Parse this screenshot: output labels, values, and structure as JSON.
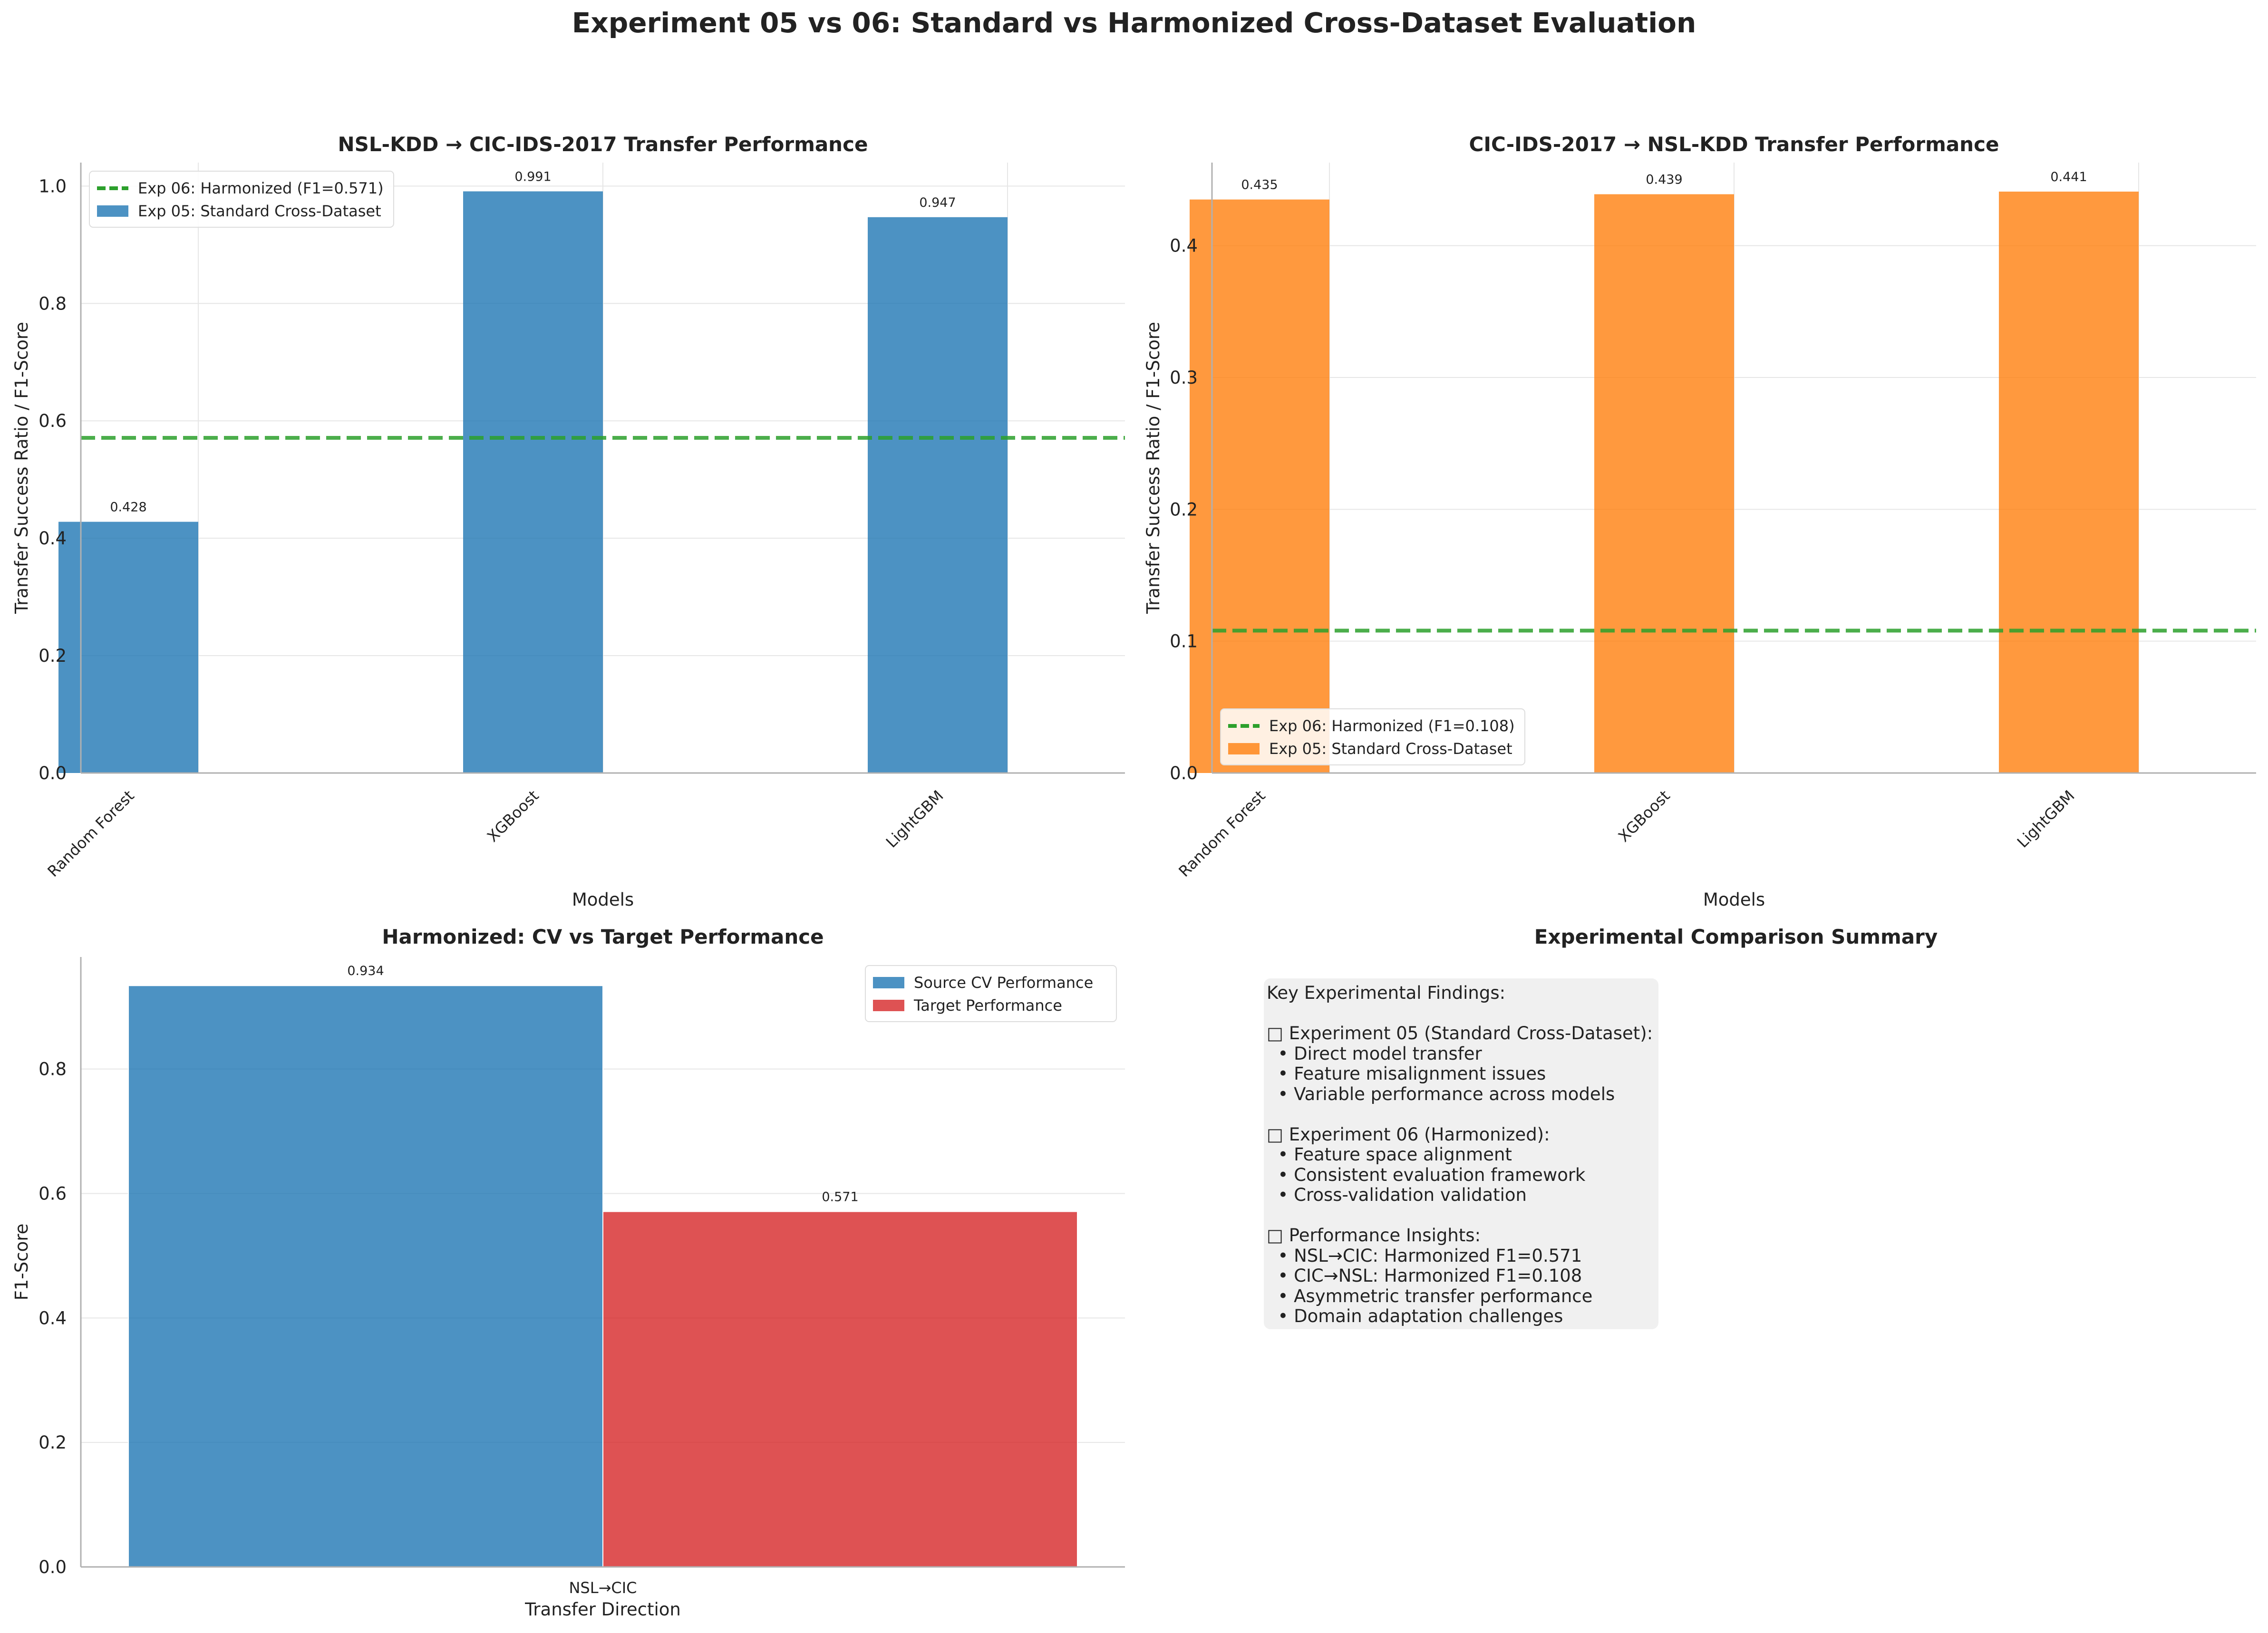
{
  "suptitle": "Experiment 05 vs 06: Standard vs Harmonized Cross-Dataset Evaluation",
  "colors": {
    "standard_nsl": "#1f77b4",
    "standard_cic": "#ff7f0e",
    "harmonized_line": "#2ca02c",
    "source_cv": "#1f77b4",
    "target": "#d62728",
    "grid": "#e6e6e6",
    "axis": "#b0b0b0"
  },
  "chart_data": [
    {
      "type": "bar",
      "title": "NSL-KDD → CIC-IDS-2017 Transfer Performance",
      "xlabel": "Models",
      "ylabel": "Transfer Success Ratio / F1-Score",
      "categories": [
        "Random Forest",
        "XGBoost",
        "LightGBM"
      ],
      "series": [
        {
          "name": "Exp 05: Standard Cross-Dataset",
          "values": [
            0.428,
            0.991,
            0.947
          ]
        }
      ],
      "value_labels": [
        "0.428",
        "0.991",
        "0.947"
      ],
      "reference_line": {
        "name": "Exp 06: Harmonized (F1=0.571)",
        "value": 0.571,
        "style": "dashed"
      },
      "ylim": [
        0,
        1.04
      ],
      "yticks": [
        0.0,
        0.2,
        0.4,
        0.6,
        0.8,
        1.0
      ],
      "ytick_labels": [
        "0.0",
        "0.2",
        "0.4",
        "0.6",
        "0.8",
        "1.0"
      ],
      "grid": true,
      "legend_position": "upper-left"
    },
    {
      "type": "bar",
      "title": "CIC-IDS-2017 → NSL-KDD Transfer Performance",
      "xlabel": "Models",
      "ylabel": "Transfer Success Ratio / F1-Score",
      "categories": [
        "Random Forest",
        "XGBoost",
        "LightGBM"
      ],
      "series": [
        {
          "name": "Exp 05: Standard Cross-Dataset",
          "values": [
            0.435,
            0.439,
            0.441
          ]
        }
      ],
      "value_labels": [
        "0.435",
        "0.439",
        "0.441"
      ],
      "reference_line": {
        "name": "Exp 06: Harmonized (F1=0.108)",
        "value": 0.108,
        "style": "dashed"
      },
      "ylim": [
        0,
        0.463
      ],
      "yticks": [
        0.0,
        0.1,
        0.2,
        0.3,
        0.4
      ],
      "ytick_labels": [
        "0.0",
        "0.1",
        "0.2",
        "0.3",
        "0.4"
      ],
      "grid": true,
      "legend_position": "lower-left"
    },
    {
      "type": "bar",
      "title": "Harmonized: CV vs Target Performance",
      "xlabel": "Transfer Direction",
      "ylabel": "F1-Score",
      "categories": [
        "NSL→CIC"
      ],
      "series": [
        {
          "name": "Source CV Performance",
          "values": [
            0.934
          ]
        },
        {
          "name": "Target Performance",
          "values": [
            0.571
          ]
        }
      ],
      "value_labels": [
        [
          "0.934"
        ],
        [
          "0.571"
        ]
      ],
      "ylim": [
        0,
        0.98
      ],
      "yticks": [
        0.0,
        0.2,
        0.4,
        0.6,
        0.8
      ],
      "ytick_labels": [
        "0.0",
        "0.2",
        "0.4",
        "0.6",
        "0.8"
      ],
      "grid": true,
      "legend_position": "upper-right"
    }
  ],
  "summary": {
    "title": "Experimental Comparison Summary",
    "text": "Key Experimental Findings:\n\n□ Experiment 05 (Standard Cross-Dataset):\n  • Direct model transfer\n  • Feature misalignment issues\n  • Variable performance across models\n\n□ Experiment 06 (Harmonized):\n  • Feature space alignment\n  • Consistent evaluation framework\n  • Cross-validation validation\n\n□ Performance Insights:\n  • NSL→CIC: Harmonized F1=0.571\n  • CIC→NSL: Harmonized F1=0.108\n  • Asymmetric transfer performance\n  • Domain adaptation challenges"
  }
}
